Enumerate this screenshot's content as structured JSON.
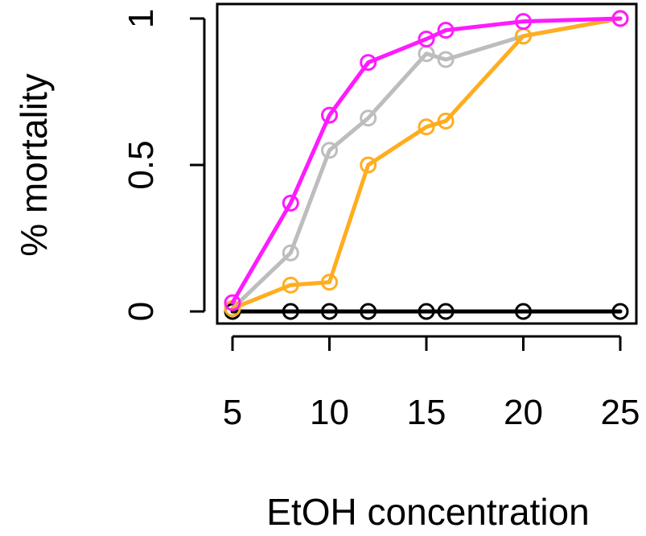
{
  "chart_data": {
    "type": "line",
    "title": "",
    "xlabel": "EtOH concentration",
    "ylabel": "% mortality",
    "xlim": [
      5,
      25
    ],
    "ylim": [
      0,
      1
    ],
    "x_ticks": [
      5,
      10,
      15,
      20,
      25
    ],
    "x_tick_labels": [
      "5",
      "10",
      "15",
      "20",
      "25"
    ],
    "y_ticks": [
      0,
      0.5,
      1
    ],
    "y_tick_labels": [
      "0",
      "0.5",
      "1"
    ],
    "grid": false,
    "legend": "none",
    "series": [
      {
        "color": "#000000",
        "x": [
          5,
          8,
          10,
          12,
          15,
          16,
          20,
          25
        ],
        "y": [
          0,
          0,
          0,
          0,
          0,
          0,
          0,
          0
        ]
      },
      {
        "color": "#bdbdbd",
        "x": [
          5,
          8,
          10,
          12,
          15,
          16,
          20,
          25
        ],
        "y": [
          0.01,
          0.2,
          0.55,
          0.66,
          0.88,
          0.86,
          0.94,
          1.0
        ]
      },
      {
        "color": "#ffad1f",
        "x": [
          5,
          8,
          10,
          12,
          15,
          16,
          20,
          25
        ],
        "y": [
          0.01,
          0.09,
          0.1,
          0.5,
          0.63,
          0.65,
          0.94,
          1.0
        ]
      },
      {
        "color": "#ff1aff",
        "x": [
          5,
          8,
          10,
          12,
          15,
          16,
          20,
          25
        ],
        "y": [
          0.03,
          0.37,
          0.67,
          0.85,
          0.93,
          0.96,
          0.99,
          1.0
        ]
      }
    ]
  }
}
